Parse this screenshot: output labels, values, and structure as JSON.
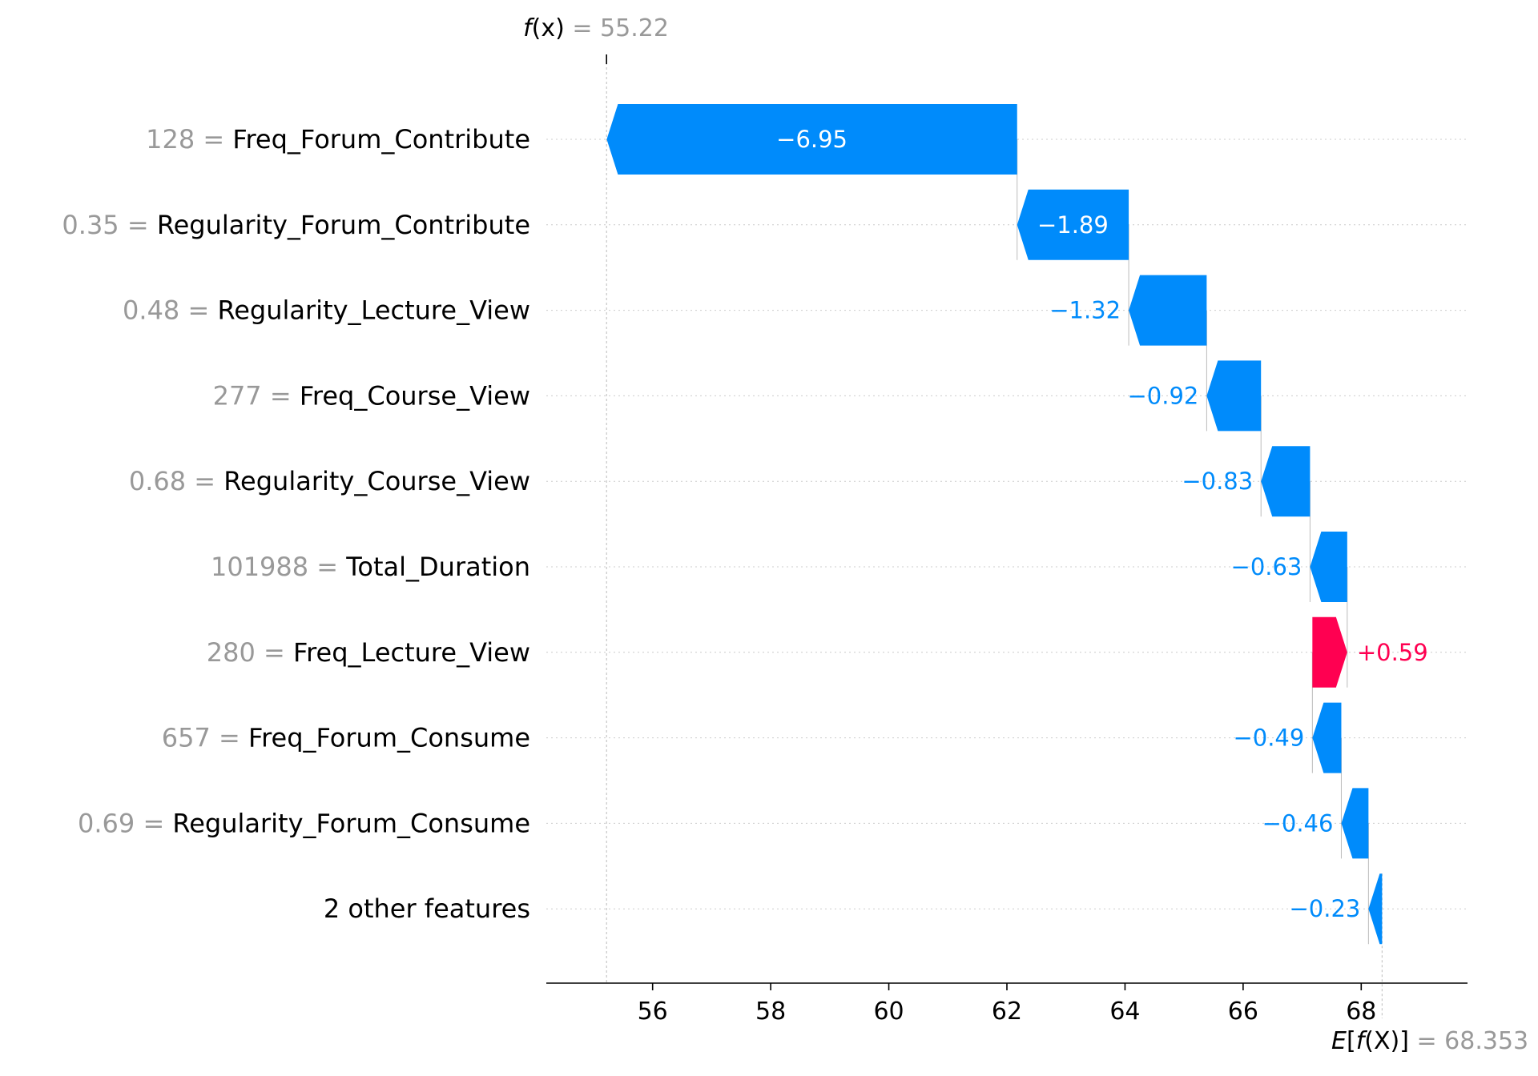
{
  "colors": {
    "negative": "#008bfb",
    "positive": "#ff0051",
    "feature_value": "#999999",
    "feature_name": "#000000",
    "grid": "#cccccc",
    "axis": "#000000"
  },
  "chart_data": {
    "type": "waterfall",
    "fx": {
      "label_prefix": "f",
      "label_arg": "(x)",
      "eq": " = ",
      "value": "55.22",
      "numeric": 55.22
    },
    "base": {
      "label_prefix": "E",
      "label_open": "[",
      "label_f": "f",
      "label_arg": "(X)",
      "label_close": "]",
      "eq": " = ",
      "value": "68.353",
      "numeric": 68.353
    },
    "xlim": [
      54.2,
      69.8
    ],
    "x_ticks": [
      56,
      58,
      60,
      62,
      64,
      66,
      68
    ],
    "features": [
      {
        "value": "128",
        "eq": " = ",
        "name": "Freq_Forum_Contribute",
        "shap": -6.95,
        "label": "−6.95"
      },
      {
        "value": "0.35",
        "eq": " = ",
        "name": "Regularity_Forum_Contribute",
        "shap": -1.89,
        "label": "−1.89"
      },
      {
        "value": "0.48",
        "eq": " = ",
        "name": "Regularity_Lecture_View",
        "shap": -1.32,
        "label": "−1.32"
      },
      {
        "value": "277",
        "eq": " = ",
        "name": "Freq_Course_View",
        "shap": -0.92,
        "label": "−0.92"
      },
      {
        "value": "0.68",
        "eq": " = ",
        "name": "Regularity_Course_View",
        "shap": -0.83,
        "label": "−0.83"
      },
      {
        "value": "101988",
        "eq": " = ",
        "name": "Total_Duration",
        "shap": -0.63,
        "label": "−0.63"
      },
      {
        "value": "280",
        "eq": " = ",
        "name": "Freq_Lecture_View",
        "shap": 0.59,
        "label": "+0.59"
      },
      {
        "value": "657",
        "eq": " = ",
        "name": "Freq_Forum_Consume",
        "shap": -0.49,
        "label": "−0.49"
      },
      {
        "value": "0.69",
        "eq": " = ",
        "name": "Regularity_Forum_Consume",
        "shap": -0.46,
        "label": "−0.46"
      },
      {
        "value": "",
        "eq": "",
        "name": "2 other features",
        "shap": -0.23,
        "label": "−0.23"
      }
    ]
  }
}
